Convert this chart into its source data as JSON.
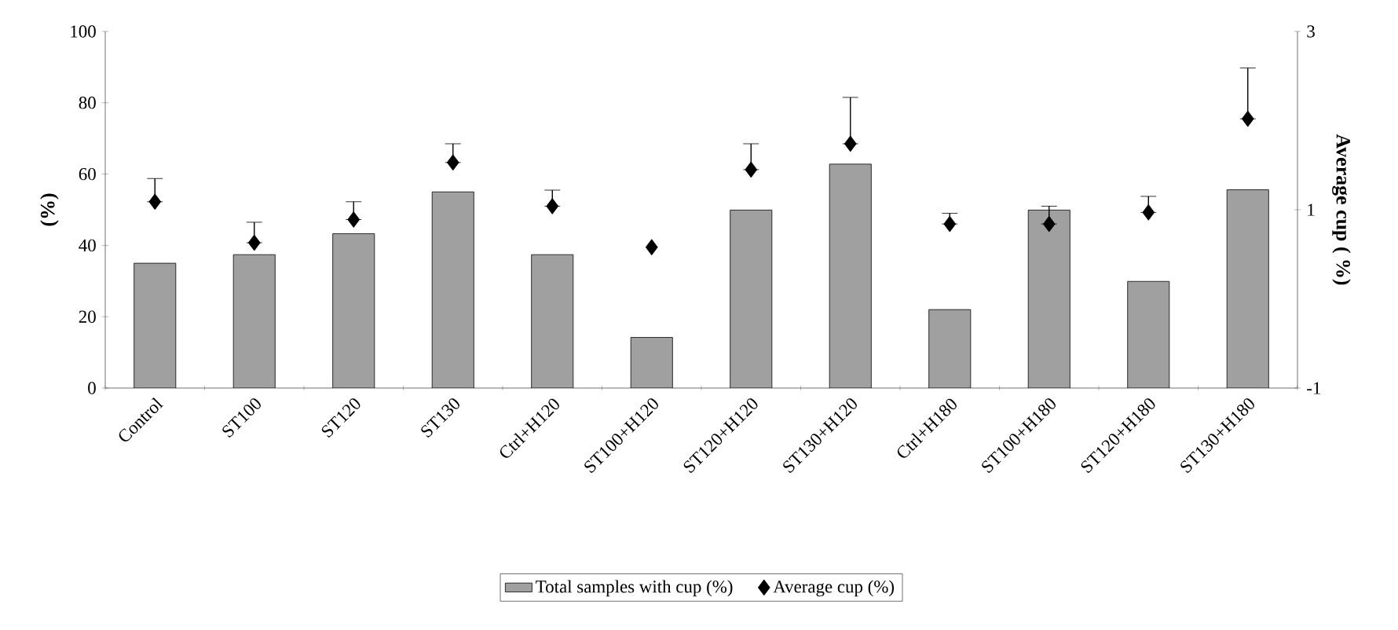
{
  "chart_data": {
    "type": "bar",
    "categories": [
      "Control",
      "ST100",
      "ST120",
      "ST130",
      "Ctrl+H120",
      "ST100+H120",
      "ST120+H120",
      "ST130+H120",
      "Ctrl+H180",
      "ST100+H180",
      "ST120+H180",
      "ST130+H180"
    ],
    "ylabel": "(%)",
    "y2label": "Average cup ( %)",
    "ylim": [
      0,
      100
    ],
    "yticks": [
      0,
      20,
      40,
      60,
      80,
      100
    ],
    "y2lim": [
      -1,
      3
    ],
    "y2ticks": [
      -1,
      1,
      3
    ],
    "legend": "bottom",
    "marker": "diamond",
    "series": [
      {
        "name": "Total samples with cup (%)",
        "color": "#a0a0a0",
        "values": [
          35,
          37.4,
          43.3,
          55,
          37.4,
          14.2,
          49.9,
          62.8,
          22,
          49.9,
          29.9,
          55.6
        ]
      },
      {
        "name": "Average cup (%)",
        "type": "scatter",
        "axis": "y2",
        "color": "#000000",
        "values": [
          1.09,
          0.63,
          0.89,
          1.53,
          1.04,
          0.58,
          1.45,
          1.74,
          0.84,
          0.84,
          0.97,
          2.02
        ],
        "errors": [
          [
            1.09,
            1.35
          ],
          [
            0.63,
            0.86
          ],
          [
            0.89,
            1.09
          ],
          [
            1.53,
            1.74
          ],
          [
            1.04,
            1.22
          ],
          null,
          [
            1.45,
            1.74
          ],
          [
            1.74,
            2.26
          ],
          [
            0.84,
            0.96
          ],
          [
            0.84,
            1.04
          ],
          [
            0.97,
            1.15
          ],
          [
            2.02,
            2.59
          ]
        ]
      }
    ]
  }
}
